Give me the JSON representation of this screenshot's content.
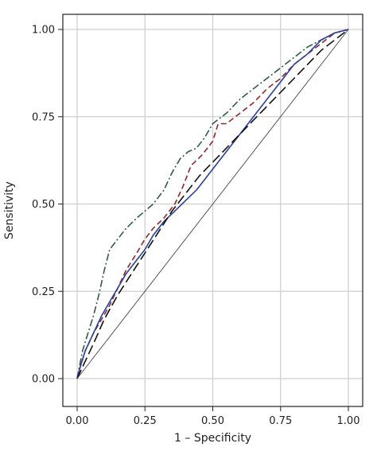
{
  "chart_data": {
    "type": "line",
    "title": "",
    "xlabel": "1 – Specificity",
    "ylabel": "Sensitivity",
    "xlim": [
      -0.05,
      1.05
    ],
    "ylim": [
      -0.05,
      1.05
    ],
    "x_ticks": [
      0.0,
      0.25,
      0.5,
      0.75,
      1.0
    ],
    "y_ticks": [
      0.0,
      0.25,
      0.5,
      0.75,
      1.0
    ],
    "x_tick_labels": [
      "0.00",
      "0.25",
      "0.50",
      "0.75",
      "1.00"
    ],
    "y_tick_labels": [
      "0.00",
      "0.25",
      "0.50",
      "0.75",
      "1.00"
    ],
    "grid": true,
    "legend": "none",
    "series": [
      {
        "style": "dash-dot",
        "color": "#2f5a4e",
        "points": [
          [
            0,
            0
          ],
          [
            0.01,
            0.04
          ],
          [
            0.02,
            0.08
          ],
          [
            0.04,
            0.13
          ],
          [
            0.06,
            0.18
          ],
          [
            0.08,
            0.24
          ],
          [
            0.1,
            0.31
          ],
          [
            0.12,
            0.37
          ],
          [
            0.15,
            0.4
          ],
          [
            0.18,
            0.43
          ],
          [
            0.22,
            0.46
          ],
          [
            0.25,
            0.48
          ],
          [
            0.28,
            0.5
          ],
          [
            0.32,
            0.54
          ],
          [
            0.35,
            0.59
          ],
          [
            0.38,
            0.63
          ],
          [
            0.41,
            0.65
          ],
          [
            0.44,
            0.66
          ],
          [
            0.47,
            0.69
          ],
          [
            0.5,
            0.73
          ],
          [
            0.55,
            0.76
          ],
          [
            0.6,
            0.8
          ],
          [
            0.65,
            0.83
          ],
          [
            0.7,
            0.86
          ],
          [
            0.75,
            0.89
          ],
          [
            0.8,
            0.92
          ],
          [
            0.85,
            0.95
          ],
          [
            0.9,
            0.97
          ],
          [
            0.95,
            0.99
          ],
          [
            1.0,
            1.0
          ]
        ]
      },
      {
        "style": "dash",
        "color": "#8b2a2a",
        "points": [
          [
            0,
            0
          ],
          [
            0.01,
            0.03
          ],
          [
            0.03,
            0.08
          ],
          [
            0.06,
            0.13
          ],
          [
            0.09,
            0.17
          ],
          [
            0.12,
            0.21
          ],
          [
            0.15,
            0.26
          ],
          [
            0.18,
            0.31
          ],
          [
            0.22,
            0.36
          ],
          [
            0.25,
            0.4
          ],
          [
            0.28,
            0.43
          ],
          [
            0.32,
            0.46
          ],
          [
            0.36,
            0.5
          ],
          [
            0.39,
            0.55
          ],
          [
            0.42,
            0.61
          ],
          [
            0.46,
            0.64
          ],
          [
            0.5,
            0.68
          ],
          [
            0.52,
            0.73
          ],
          [
            0.55,
            0.73
          ],
          [
            0.6,
            0.76
          ],
          [
            0.65,
            0.79
          ],
          [
            0.7,
            0.83
          ],
          [
            0.75,
            0.86
          ],
          [
            0.8,
            0.9
          ],
          [
            0.85,
            0.93
          ],
          [
            0.9,
            0.96
          ],
          [
            0.95,
            0.99
          ],
          [
            1.0,
            1.0
          ]
        ]
      },
      {
        "style": "solid",
        "color": "#2a3ea0",
        "points": [
          [
            0,
            0
          ],
          [
            0.01,
            0.03
          ],
          [
            0.03,
            0.08
          ],
          [
            0.06,
            0.13
          ],
          [
            0.09,
            0.18
          ],
          [
            0.12,
            0.22
          ],
          [
            0.15,
            0.26
          ],
          [
            0.18,
            0.3
          ],
          [
            0.22,
            0.34
          ],
          [
            0.25,
            0.37
          ],
          [
            0.28,
            0.41
          ],
          [
            0.32,
            0.45
          ],
          [
            0.36,
            0.48
          ],
          [
            0.4,
            0.51
          ],
          [
            0.44,
            0.54
          ],
          [
            0.48,
            0.58
          ],
          [
            0.52,
            0.62
          ],
          [
            0.56,
            0.66
          ],
          [
            0.6,
            0.7
          ],
          [
            0.65,
            0.75
          ],
          [
            0.7,
            0.8
          ],
          [
            0.75,
            0.85
          ],
          [
            0.8,
            0.9
          ],
          [
            0.85,
            0.93
          ],
          [
            0.9,
            0.97
          ],
          [
            0.95,
            0.99
          ],
          [
            1.0,
            1.0
          ]
        ]
      },
      {
        "style": "long-dash",
        "color": "#111111",
        "points": [
          [
            0,
            0
          ],
          [
            0.03,
            0.05
          ],
          [
            0.06,
            0.1
          ],
          [
            0.1,
            0.17
          ],
          [
            0.15,
            0.24
          ],
          [
            0.2,
            0.3
          ],
          [
            0.25,
            0.36
          ],
          [
            0.3,
            0.42
          ],
          [
            0.35,
            0.48
          ],
          [
            0.4,
            0.53
          ],
          [
            0.45,
            0.58
          ],
          [
            0.5,
            0.62
          ],
          [
            0.55,
            0.66
          ],
          [
            0.6,
            0.7
          ],
          [
            0.65,
            0.74
          ],
          [
            0.7,
            0.78
          ],
          [
            0.75,
            0.82
          ],
          [
            0.8,
            0.86
          ],
          [
            0.85,
            0.9
          ],
          [
            0.9,
            0.94
          ],
          [
            0.95,
            0.97
          ],
          [
            1.0,
            1.0
          ]
        ]
      },
      {
        "style": "reference",
        "color": "#555555",
        "points": [
          [
            0,
            0
          ],
          [
            1,
            1
          ]
        ]
      }
    ]
  }
}
